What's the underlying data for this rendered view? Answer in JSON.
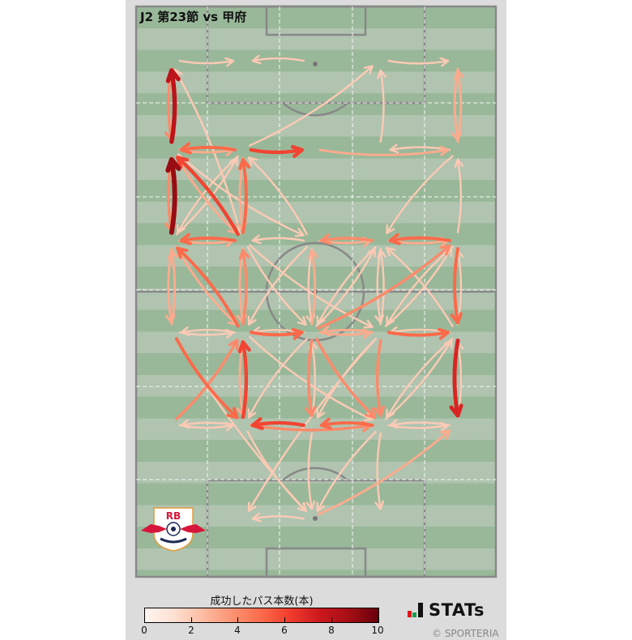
{
  "title": "J2 第23節 vs 甲府",
  "team_logo_text": "RB OMIYA ARDIJA",
  "colors": {
    "pitch_dark": "#99b899",
    "pitch_light": "#b0c4b0",
    "lines": "#888888",
    "panel": "#dcdcdc"
  },
  "colorbar": {
    "label": "成功したパス本数(本)",
    "colormap": "Reds",
    "range": [
      0,
      10
    ],
    "ticks": [
      "0",
      "2",
      "4",
      "6",
      "8",
      "10"
    ]
  },
  "brand": {
    "name": "STATs",
    "copyright": "© SPORTERIA"
  },
  "chart_data": {
    "type": "pass-network",
    "pitch_units": "meters",
    "pitch_size": [
      68,
      105
    ],
    "nodes": {
      "L1": [
        6.7,
        10
      ],
      "L2": [
        6.7,
        26.4
      ],
      "L3": [
        6.7,
        43.1
      ],
      "L4": [
        6.7,
        60
      ],
      "L5": [
        6.7,
        77.1
      ],
      "M2a": [
        20.2,
        10
      ],
      "M2b": [
        20.2,
        26.4
      ],
      "M2c": [
        20.2,
        43.1
      ],
      "M2d": [
        20.2,
        60
      ],
      "M2e": [
        20.2,
        77.1
      ],
      "M2f": [
        20.2,
        94.3
      ],
      "M3a": [
        33.2,
        10
      ],
      "M3b": [
        33.2,
        26.4
      ],
      "M3c": [
        33.2,
        43.1
      ],
      "M3d": [
        33.2,
        60
      ],
      "M3e": [
        33.2,
        77.1
      ],
      "M3f": [
        33.2,
        94.3
      ],
      "M4a": [
        46.2,
        10
      ],
      "M4b": [
        46.2,
        26.4
      ],
      "M4c": [
        46.2,
        43.1
      ],
      "M4d": [
        46.2,
        60
      ],
      "M4e": [
        46.2,
        77.1
      ],
      "M4f": [
        46.2,
        94.3
      ],
      "R1": [
        60.8,
        10
      ],
      "R2": [
        60.8,
        26.4
      ],
      "R3": [
        60.8,
        43.1
      ],
      "R4": [
        60.8,
        60
      ],
      "R5": [
        60.8,
        77.1
      ]
    },
    "passes": [
      [
        "L1",
        "M2a",
        2
      ],
      [
        "M3a",
        "M2a",
        2
      ],
      [
        "M4a",
        "R1",
        2
      ],
      [
        "L2",
        "L1",
        8
      ],
      [
        "L1",
        "L2",
        4
      ],
      [
        "M2c",
        "L1",
        2
      ],
      [
        "M2b",
        "M4a",
        2
      ],
      [
        "M4b",
        "M4a",
        2
      ],
      [
        "R2",
        "R1",
        3
      ],
      [
        "R1",
        "R2",
        3
      ],
      [
        "M2b",
        "L2",
        5
      ],
      [
        "L2",
        "M2b",
        3
      ],
      [
        "M2b",
        "M3b",
        6
      ],
      [
        "M3b",
        "R2",
        3
      ],
      [
        "R2",
        "M4b",
        2
      ],
      [
        "L3",
        "L2",
        9
      ],
      [
        "L2",
        "L3",
        4
      ],
      [
        "M2c",
        "L2",
        6
      ],
      [
        "L2",
        "M2c",
        3
      ],
      [
        "M2c",
        "M2b",
        5
      ],
      [
        "M2b",
        "M2c",
        3
      ],
      [
        "L3",
        "M2b",
        2
      ],
      [
        "M2b",
        "L3",
        2
      ],
      [
        "L2",
        "M3c",
        2
      ],
      [
        "M3c",
        "M2b",
        2
      ],
      [
        "R2",
        "M4c",
        2
      ],
      [
        "R3",
        "R2",
        2
      ],
      [
        "M2c",
        "L3",
        5
      ],
      [
        "L3",
        "M2c",
        3
      ],
      [
        "M3c",
        "M2c",
        2
      ],
      [
        "M4c",
        "M3c",
        4
      ],
      [
        "M3c",
        "M4c",
        3
      ],
      [
        "R3",
        "M4c",
        5
      ],
      [
        "M4c",
        "R3",
        3
      ],
      [
        "R3",
        "R4",
        5
      ],
      [
        "R4",
        "R3",
        2
      ],
      [
        "L4",
        "L3",
        3
      ],
      [
        "L3",
        "L4",
        3
      ],
      [
        "M2d",
        "L3",
        5
      ],
      [
        "L3",
        "M2d",
        3
      ],
      [
        "M2d",
        "M2c",
        4
      ],
      [
        "M2c",
        "M2d",
        3
      ],
      [
        "M2c",
        "M3d",
        2
      ],
      [
        "M2c",
        "M4d",
        2
      ],
      [
        "M3c",
        "M2d",
        2
      ],
      [
        "M3c",
        "M3d",
        2
      ],
      [
        "M3d",
        "M3c",
        3
      ],
      [
        "M4c",
        "M3d",
        2
      ],
      [
        "M3d",
        "M4c",
        2
      ],
      [
        "M4d",
        "M4c",
        2
      ],
      [
        "M4c",
        "M4d",
        2
      ],
      [
        "R3",
        "M4d",
        2
      ],
      [
        "M4d",
        "R3",
        2
      ],
      [
        "R4",
        "M4c",
        2
      ],
      [
        "M3d",
        "R3",
        4
      ],
      [
        "M2d",
        "L4",
        2
      ],
      [
        "L4",
        "M2d",
        2
      ],
      [
        "M2d",
        "M3d",
        5
      ],
      [
        "M3d",
        "M2d",
        2
      ],
      [
        "M3d",
        "M4d",
        3
      ],
      [
        "M4d",
        "M3d",
        3
      ],
      [
        "M4d",
        "R4",
        5
      ],
      [
        "R4",
        "M4d",
        2
      ],
      [
        "R4",
        "R5",
        7
      ],
      [
        "R5",
        "R4",
        2
      ],
      [
        "L4",
        "M2e",
        5
      ],
      [
        "L5",
        "M2e",
        2
      ],
      [
        "M2e",
        "L5",
        2
      ],
      [
        "L5",
        "M2d",
        4
      ],
      [
        "M2e",
        "M2d",
        6
      ],
      [
        "M2d",
        "M2e",
        3
      ],
      [
        "M3d",
        "M3e",
        4
      ],
      [
        "M3e",
        "M3d",
        2
      ],
      [
        "M3e",
        "M2e",
        6
      ],
      [
        "M4e",
        "M3e",
        5
      ],
      [
        "M2e",
        "M4e",
        4
      ],
      [
        "M4e",
        "R5",
        2
      ],
      [
        "R5",
        "M4e",
        2
      ],
      [
        "M3d",
        "M4e",
        4
      ],
      [
        "M4d",
        "M4e",
        4
      ],
      [
        "M4d",
        "M3e",
        2
      ],
      [
        "M3d",
        "M2e",
        2
      ],
      [
        "R4",
        "M4e",
        2
      ],
      [
        "M4e",
        "R4",
        2
      ],
      [
        "M2d",
        "M4e",
        2
      ],
      [
        "M4e",
        "M3f",
        2
      ],
      [
        "M3f",
        "R5",
        3
      ],
      [
        "M3f",
        "M2f",
        2
      ],
      [
        "L4",
        "M3f",
        2
      ],
      [
        "M4e",
        "M4f",
        2
      ],
      [
        "M3e",
        "M3f",
        2
      ],
      [
        "M4d",
        "M2f",
        2
      ],
      [
        "M2e",
        "M3f",
        2
      ]
    ]
  }
}
